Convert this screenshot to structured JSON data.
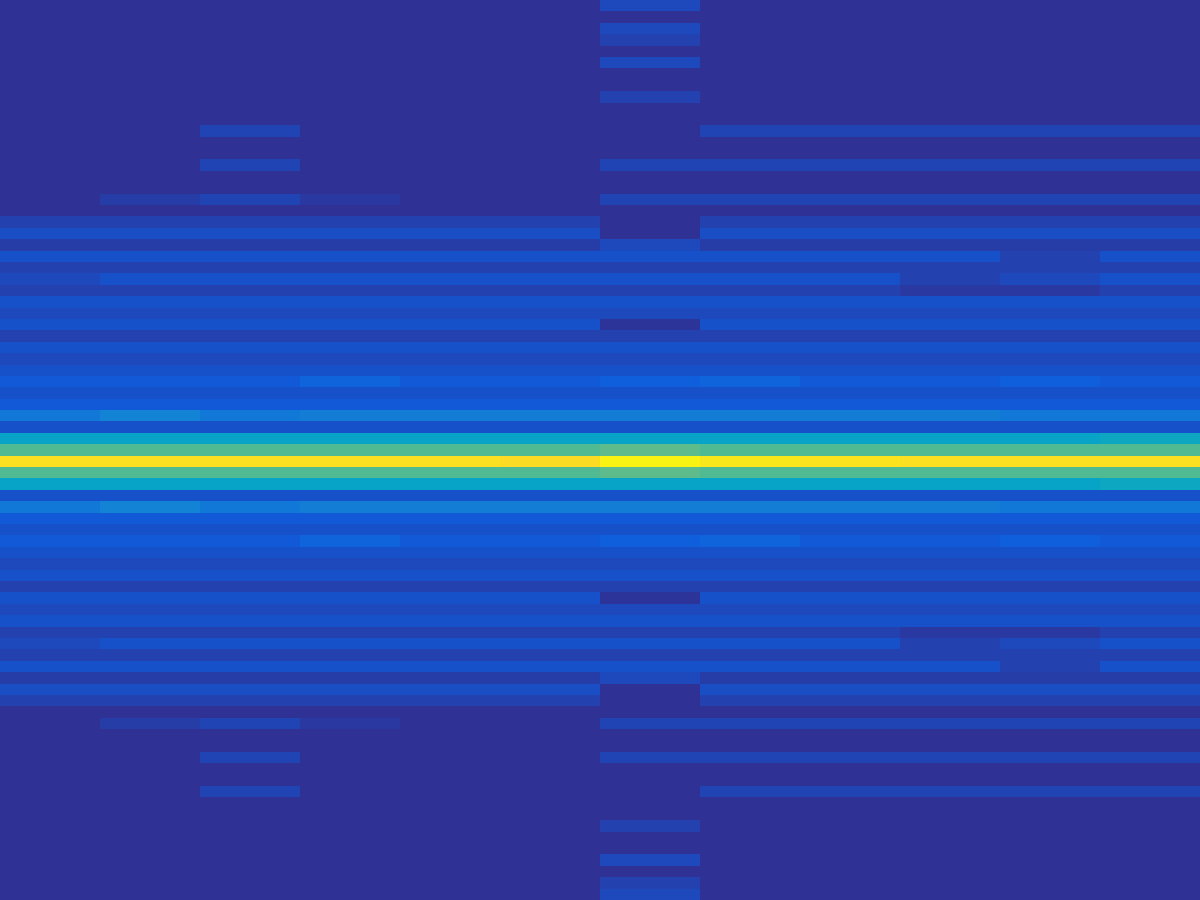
{
  "chart_data": {
    "type": "heatmap",
    "tick_labels": false,
    "clim": [
      0,
      1
    ],
    "cells": [
      [
        0.02,
        0.02,
        0.02,
        0.02,
        0.02,
        0.02,
        0.08,
        0.02,
        0.02,
        0.02,
        0.02,
        0.02
      ],
      [
        0.02,
        0.02,
        0.02,
        0.02,
        0.02,
        0.02,
        0.02,
        0.02,
        0.02,
        0.02,
        0.02,
        0.02
      ],
      [
        0.02,
        0.02,
        0.02,
        0.02,
        0.02,
        0.02,
        0.08,
        0.02,
        0.02,
        0.02,
        0.02,
        0.02
      ],
      [
        0.02,
        0.02,
        0.02,
        0.02,
        0.02,
        0.02,
        0.06,
        0.02,
        0.02,
        0.02,
        0.02,
        0.02
      ],
      [
        0.02,
        0.02,
        0.02,
        0.02,
        0.02,
        0.02,
        0.02,
        0.02,
        0.02,
        0.02,
        0.02,
        0.02
      ],
      [
        0.02,
        0.02,
        0.02,
        0.02,
        0.02,
        0.02,
        0.08,
        0.02,
        0.02,
        0.02,
        0.02,
        0.02
      ],
      [
        0.02,
        0.02,
        0.02,
        0.02,
        0.02,
        0.02,
        0.02,
        0.02,
        0.02,
        0.02,
        0.02,
        0.02
      ],
      [
        0.02,
        0.02,
        0.02,
        0.02,
        0.02,
        0.02,
        0.02,
        0.02,
        0.02,
        0.02,
        0.02,
        0.02
      ],
      [
        0.02,
        0.02,
        0.02,
        0.02,
        0.02,
        0.02,
        0.06,
        0.02,
        0.02,
        0.02,
        0.02,
        0.02
      ],
      [
        0.02,
        0.02,
        0.02,
        0.02,
        0.02,
        0.02,
        0.02,
        0.02,
        0.02,
        0.02,
        0.02,
        0.02
      ],
      [
        0.02,
        0.02,
        0.02,
        0.02,
        0.02,
        0.02,
        0.02,
        0.02,
        0.02,
        0.02,
        0.02,
        0.02
      ],
      [
        0.02,
        0.02,
        0.07,
        0.02,
        0.02,
        0.02,
        0.02,
        0.07,
        0.07,
        0.07,
        0.07,
        0.07
      ],
      [
        0.02,
        0.02,
        0.02,
        0.02,
        0.02,
        0.02,
        0.02,
        0.02,
        0.02,
        0.02,
        0.02,
        0.02
      ],
      [
        0.02,
        0.02,
        0.02,
        0.02,
        0.02,
        0.02,
        0.02,
        0.02,
        0.02,
        0.02,
        0.02,
        0.02
      ],
      [
        0.02,
        0.02,
        0.07,
        0.02,
        0.02,
        0.02,
        0.07,
        0.07,
        0.07,
        0.07,
        0.07,
        0.07
      ],
      [
        0.02,
        0.02,
        0.02,
        0.02,
        0.02,
        0.02,
        0.02,
        0.02,
        0.02,
        0.02,
        0.02,
        0.02
      ],
      [
        0.02,
        0.02,
        0.02,
        0.02,
        0.02,
        0.02,
        0.02,
        0.02,
        0.02,
        0.02,
        0.02,
        0.02
      ],
      [
        0.02,
        0.05,
        0.07,
        0.04,
        0.02,
        0.02,
        0.07,
        0.07,
        0.07,
        0.07,
        0.07,
        0.07
      ],
      [
        0.02,
        0.02,
        0.02,
        0.02,
        0.02,
        0.02,
        0.02,
        0.02,
        0.02,
        0.02,
        0.02,
        0.02
      ],
      [
        0.06,
        0.06,
        0.06,
        0.06,
        0.06,
        0.06,
        0.02,
        0.06,
        0.06,
        0.06,
        0.06,
        0.06
      ],
      [
        0.09,
        0.09,
        0.09,
        0.09,
        0.09,
        0.09,
        0.02,
        0.09,
        0.09,
        0.09,
        0.09,
        0.09
      ],
      [
        0.05,
        0.05,
        0.05,
        0.05,
        0.05,
        0.05,
        0.08,
        0.05,
        0.05,
        0.05,
        0.05,
        0.05
      ],
      [
        0.1,
        0.1,
        0.1,
        0.1,
        0.1,
        0.1,
        0.1,
        0.1,
        0.1,
        0.1,
        0.06,
        0.1
      ],
      [
        0.06,
        0.06,
        0.06,
        0.06,
        0.06,
        0.06,
        0.06,
        0.06,
        0.06,
        0.06,
        0.06,
        0.06
      ],
      [
        0.08,
        0.1,
        0.1,
        0.1,
        0.1,
        0.1,
        0.1,
        0.1,
        0.1,
        0.06,
        0.08,
        0.1
      ],
      [
        0.06,
        0.06,
        0.06,
        0.06,
        0.06,
        0.06,
        0.06,
        0.06,
        0.06,
        0.04,
        0.04,
        0.06
      ],
      [
        0.1,
        0.1,
        0.1,
        0.1,
        0.1,
        0.1,
        0.1,
        0.1,
        0.1,
        0.1,
        0.1,
        0.1
      ],
      [
        0.08,
        0.08,
        0.08,
        0.08,
        0.08,
        0.08,
        0.08,
        0.08,
        0.08,
        0.08,
        0.08,
        0.08
      ],
      [
        0.1,
        0.1,
        0.1,
        0.1,
        0.1,
        0.1,
        0.03,
        0.1,
        0.1,
        0.1,
        0.1,
        0.1
      ],
      [
        0.06,
        0.06,
        0.06,
        0.06,
        0.06,
        0.06,
        0.06,
        0.06,
        0.06,
        0.06,
        0.06,
        0.06
      ],
      [
        0.1,
        0.1,
        0.1,
        0.1,
        0.1,
        0.1,
        0.1,
        0.1,
        0.1,
        0.1,
        0.1,
        0.1
      ],
      [
        0.08,
        0.08,
        0.08,
        0.08,
        0.08,
        0.08,
        0.08,
        0.08,
        0.08,
        0.08,
        0.08,
        0.08
      ],
      [
        0.1,
        0.1,
        0.1,
        0.1,
        0.1,
        0.1,
        0.1,
        0.1,
        0.1,
        0.1,
        0.1,
        0.1
      ],
      [
        0.12,
        0.12,
        0.12,
        0.15,
        0.12,
        0.12,
        0.14,
        0.15,
        0.12,
        0.12,
        0.14,
        0.12
      ],
      [
        0.1,
        0.1,
        0.1,
        0.1,
        0.1,
        0.1,
        0.1,
        0.1,
        0.1,
        0.1,
        0.1,
        0.1
      ],
      [
        0.12,
        0.12,
        0.12,
        0.12,
        0.12,
        0.12,
        0.12,
        0.12,
        0.12,
        0.12,
        0.12,
        0.12
      ],
      [
        0.22,
        0.26,
        0.22,
        0.24,
        0.24,
        0.24,
        0.24,
        0.24,
        0.24,
        0.24,
        0.22,
        0.22
      ],
      [
        0.1,
        0.1,
        0.1,
        0.1,
        0.1,
        0.1,
        0.1,
        0.1,
        0.1,
        0.1,
        0.1,
        0.1
      ],
      [
        0.38,
        0.38,
        0.38,
        0.38,
        0.38,
        0.38,
        0.38,
        0.38,
        0.38,
        0.38,
        0.38,
        0.4
      ],
      [
        0.55,
        0.55,
        0.55,
        0.55,
        0.55,
        0.55,
        0.57,
        0.55,
        0.55,
        0.55,
        0.55,
        0.55
      ],
      [
        0.93,
        0.93,
        0.93,
        0.93,
        0.93,
        0.92,
        0.98,
        0.95,
        0.94,
        0.93,
        0.93,
        0.93
      ],
      [
        0.55,
        0.55,
        0.55,
        0.55,
        0.55,
        0.55,
        0.57,
        0.55,
        0.55,
        0.55,
        0.55,
        0.55
      ],
      [
        0.38,
        0.38,
        0.38,
        0.38,
        0.38,
        0.38,
        0.38,
        0.38,
        0.38,
        0.38,
        0.38,
        0.4
      ],
      [
        0.1,
        0.1,
        0.1,
        0.1,
        0.1,
        0.1,
        0.1,
        0.1,
        0.1,
        0.1,
        0.1,
        0.1
      ],
      [
        0.22,
        0.26,
        0.22,
        0.24,
        0.24,
        0.24,
        0.24,
        0.24,
        0.24,
        0.24,
        0.22,
        0.22
      ],
      [
        0.12,
        0.12,
        0.12,
        0.12,
        0.12,
        0.12,
        0.12,
        0.12,
        0.12,
        0.12,
        0.12,
        0.12
      ],
      [
        0.1,
        0.1,
        0.1,
        0.1,
        0.1,
        0.1,
        0.1,
        0.1,
        0.1,
        0.1,
        0.1,
        0.1
      ],
      [
        0.12,
        0.12,
        0.12,
        0.15,
        0.12,
        0.12,
        0.14,
        0.15,
        0.12,
        0.12,
        0.14,
        0.12
      ],
      [
        0.1,
        0.1,
        0.1,
        0.1,
        0.1,
        0.1,
        0.1,
        0.1,
        0.1,
        0.1,
        0.1,
        0.1
      ],
      [
        0.08,
        0.08,
        0.08,
        0.08,
        0.08,
        0.08,
        0.08,
        0.08,
        0.08,
        0.08,
        0.08,
        0.08
      ],
      [
        0.1,
        0.1,
        0.1,
        0.1,
        0.1,
        0.1,
        0.1,
        0.1,
        0.1,
        0.1,
        0.1,
        0.1
      ],
      [
        0.06,
        0.06,
        0.06,
        0.06,
        0.06,
        0.06,
        0.06,
        0.06,
        0.06,
        0.06,
        0.06,
        0.06
      ],
      [
        0.1,
        0.1,
        0.1,
        0.1,
        0.1,
        0.1,
        0.03,
        0.1,
        0.1,
        0.1,
        0.1,
        0.1
      ],
      [
        0.08,
        0.08,
        0.08,
        0.08,
        0.08,
        0.08,
        0.08,
        0.08,
        0.08,
        0.08,
        0.08,
        0.08
      ],
      [
        0.1,
        0.1,
        0.1,
        0.1,
        0.1,
        0.1,
        0.1,
        0.1,
        0.1,
        0.1,
        0.1,
        0.1
      ],
      [
        0.06,
        0.06,
        0.06,
        0.06,
        0.06,
        0.06,
        0.06,
        0.06,
        0.06,
        0.04,
        0.04,
        0.06
      ],
      [
        0.08,
        0.1,
        0.1,
        0.1,
        0.1,
        0.1,
        0.1,
        0.1,
        0.1,
        0.06,
        0.08,
        0.1
      ],
      [
        0.06,
        0.06,
        0.06,
        0.06,
        0.06,
        0.06,
        0.06,
        0.06,
        0.06,
        0.06,
        0.06,
        0.06
      ],
      [
        0.1,
        0.1,
        0.1,
        0.1,
        0.1,
        0.1,
        0.1,
        0.1,
        0.1,
        0.1,
        0.06,
        0.1
      ],
      [
        0.05,
        0.05,
        0.05,
        0.05,
        0.05,
        0.05,
        0.08,
        0.05,
        0.05,
        0.05,
        0.05,
        0.05
      ],
      [
        0.09,
        0.09,
        0.09,
        0.09,
        0.09,
        0.09,
        0.02,
        0.09,
        0.09,
        0.09,
        0.09,
        0.09
      ],
      [
        0.06,
        0.06,
        0.06,
        0.06,
        0.06,
        0.06,
        0.02,
        0.06,
        0.06,
        0.06,
        0.06,
        0.06
      ],
      [
        0.02,
        0.02,
        0.02,
        0.02,
        0.02,
        0.02,
        0.02,
        0.02,
        0.02,
        0.02,
        0.02,
        0.02
      ],
      [
        0.02,
        0.05,
        0.07,
        0.04,
        0.02,
        0.02,
        0.07,
        0.07,
        0.07,
        0.07,
        0.07,
        0.07
      ],
      [
        0.02,
        0.02,
        0.02,
        0.02,
        0.02,
        0.02,
        0.02,
        0.02,
        0.02,
        0.02,
        0.02,
        0.02
      ],
      [
        0.02,
        0.02,
        0.02,
        0.02,
        0.02,
        0.02,
        0.02,
        0.02,
        0.02,
        0.02,
        0.02,
        0.02
      ],
      [
        0.02,
        0.02,
        0.07,
        0.02,
        0.02,
        0.02,
        0.07,
        0.07,
        0.07,
        0.07,
        0.07,
        0.07
      ],
      [
        0.02,
        0.02,
        0.02,
        0.02,
        0.02,
        0.02,
        0.02,
        0.02,
        0.02,
        0.02,
        0.02,
        0.02
      ],
      [
        0.02,
        0.02,
        0.02,
        0.02,
        0.02,
        0.02,
        0.02,
        0.02,
        0.02,
        0.02,
        0.02,
        0.02
      ],
      [
        0.02,
        0.02,
        0.07,
        0.02,
        0.02,
        0.02,
        0.02,
        0.07,
        0.07,
        0.07,
        0.07,
        0.07
      ],
      [
        0.02,
        0.02,
        0.02,
        0.02,
        0.02,
        0.02,
        0.02,
        0.02,
        0.02,
        0.02,
        0.02,
        0.02
      ],
      [
        0.02,
        0.02,
        0.02,
        0.02,
        0.02,
        0.02,
        0.02,
        0.02,
        0.02,
        0.02,
        0.02,
        0.02
      ],
      [
        0.02,
        0.02,
        0.02,
        0.02,
        0.02,
        0.02,
        0.06,
        0.02,
        0.02,
        0.02,
        0.02,
        0.02
      ],
      [
        0.02,
        0.02,
        0.02,
        0.02,
        0.02,
        0.02,
        0.02,
        0.02,
        0.02,
        0.02,
        0.02,
        0.02
      ],
      [
        0.02,
        0.02,
        0.02,
        0.02,
        0.02,
        0.02,
        0.02,
        0.02,
        0.02,
        0.02,
        0.02,
        0.02
      ],
      [
        0.02,
        0.02,
        0.02,
        0.02,
        0.02,
        0.02,
        0.08,
        0.02,
        0.02,
        0.02,
        0.02,
        0.02
      ],
      [
        0.02,
        0.02,
        0.02,
        0.02,
        0.02,
        0.02,
        0.02,
        0.02,
        0.02,
        0.02,
        0.02,
        0.02
      ],
      [
        0.02,
        0.02,
        0.02,
        0.02,
        0.02,
        0.02,
        0.06,
        0.02,
        0.02,
        0.02,
        0.02,
        0.02
      ],
      [
        0.02,
        0.02,
        0.02,
        0.02,
        0.02,
        0.02,
        0.08,
        0.02,
        0.02,
        0.02,
        0.02,
        0.02
      ]
    ]
  }
}
